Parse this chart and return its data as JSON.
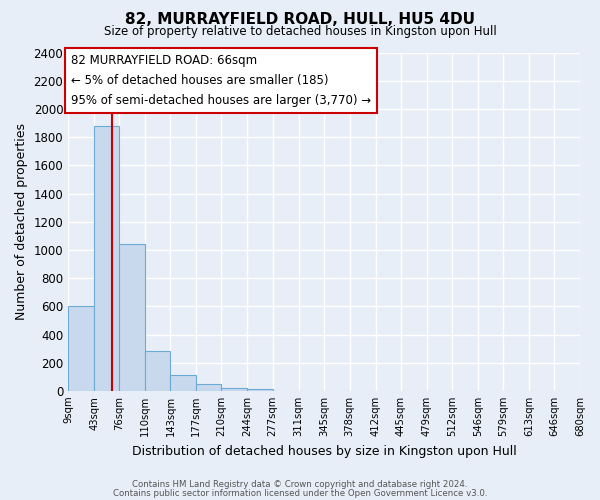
{
  "title": "82, MURRAYFIELD ROAD, HULL, HU5 4DU",
  "subtitle": "Size of property relative to detached houses in Kingston upon Hull",
  "xlabel": "Distribution of detached houses by size in Kingston upon Hull",
  "ylabel": "Number of detached properties",
  "bin_edges": [
    9,
    43,
    76,
    110,
    143,
    177,
    210,
    244,
    277,
    311,
    345,
    378,
    412,
    445,
    479,
    512,
    546,
    579,
    613,
    646,
    680
  ],
  "bin_labels": [
    "9sqm",
    "43sqm",
    "76sqm",
    "110sqm",
    "143sqm",
    "177sqm",
    "210sqm",
    "244sqm",
    "277sqm",
    "311sqm",
    "345sqm",
    "378sqm",
    "412sqm",
    "445sqm",
    "479sqm",
    "512sqm",
    "546sqm",
    "579sqm",
    "613sqm",
    "646sqm",
    "680sqm"
  ],
  "counts": [
    600,
    1880,
    1040,
    280,
    115,
    50,
    20,
    15,
    0,
    0,
    0,
    0,
    0,
    0,
    0,
    0,
    0,
    0,
    0,
    0
  ],
  "bar_color": "#c8d9ee",
  "bar_edge_color": "#6aaad4",
  "property_line_x": 66,
  "property_line_color": "#cc0000",
  "annotation_title": "82 MURRAYFIELD ROAD: 66sqm",
  "annotation_line1": "← 5% of detached houses are smaller (185)",
  "annotation_line2": "95% of semi-detached houses are larger (3,770) →",
  "annotation_box_color": "#ffffff",
  "annotation_box_edge_color": "#cc0000",
  "ylim": [
    0,
    2400
  ],
  "yticks": [
    0,
    200,
    400,
    600,
    800,
    1000,
    1200,
    1400,
    1600,
    1800,
    2000,
    2200,
    2400
  ],
  "footer1": "Contains HM Land Registry data © Crown copyright and database right 2024.",
  "footer2": "Contains public sector information licensed under the Open Government Licence v3.0.",
  "background_color": "#e8eef7",
  "grid_color": "#ffffff"
}
